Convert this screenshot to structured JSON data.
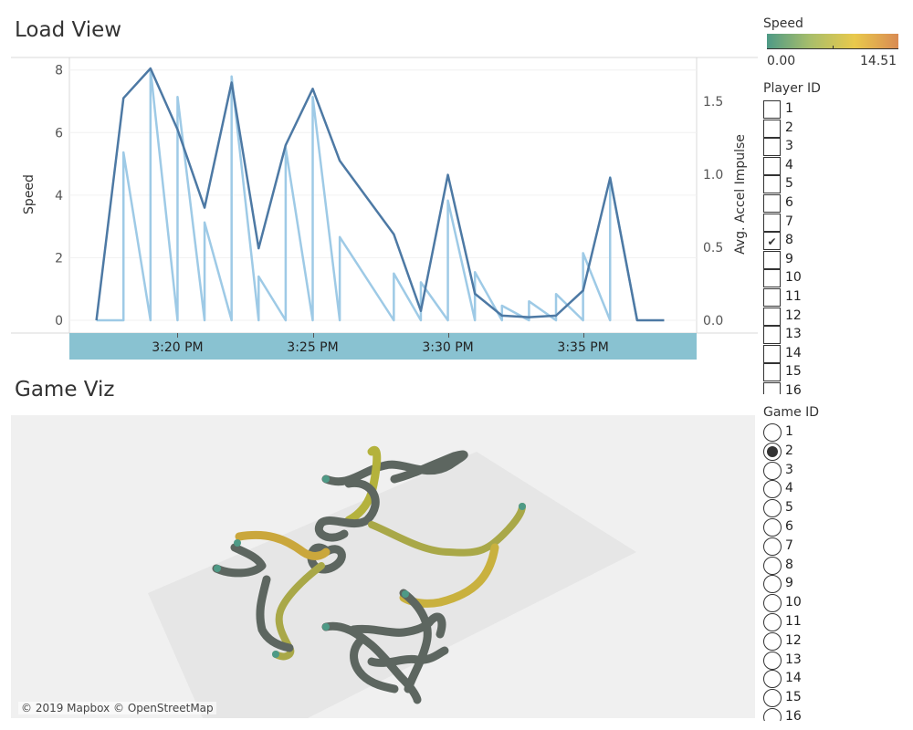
{
  "load_view": {
    "title": "Load View"
  },
  "game_viz": {
    "title": "Game Viz",
    "credit": "© 2019 Mapbox © OpenStreetMap"
  },
  "chart_data": {
    "type": "line",
    "ylabel": "Speed",
    "y2label": "Avg. Accel Impulse",
    "ylim": [
      0,
      8.4
    ],
    "y2lim": [
      0,
      1.8
    ],
    "yticks": [
      0,
      2,
      4,
      6,
      8
    ],
    "y2ticks": [
      "0.0",
      "0.5",
      "1.0",
      "1.5"
    ],
    "xticks": [
      {
        "label": "3:20 PM",
        "minute": 20
      },
      {
        "label": "3:25 PM",
        "minute": 25
      },
      {
        "label": "3:30 PM",
        "minute": 30
      },
      {
        "label": "3:35 PM",
        "minute": 35
      }
    ],
    "series": [
      {
        "name": "Speed",
        "color": "#4d79a4",
        "points": [
          [
            17.0,
            0
          ],
          [
            18.0,
            7.1
          ],
          [
            19.0,
            8.05
          ],
          [
            20.0,
            6.1
          ],
          [
            21.0,
            3.6
          ],
          [
            22.0,
            7.6
          ],
          [
            23.0,
            2.3
          ],
          [
            24.0,
            5.6
          ],
          [
            25.0,
            7.4
          ],
          [
            26.0,
            5.1
          ],
          [
            28.0,
            2.75
          ],
          [
            29.0,
            0.3
          ],
          [
            30.0,
            4.65
          ],
          [
            31.0,
            0.85
          ],
          [
            32.0,
            0.15
          ],
          [
            33.0,
            0.1
          ],
          [
            34.0,
            0.15
          ],
          [
            35.0,
            0.95
          ],
          [
            36.0,
            4.55
          ],
          [
            37.0,
            0
          ],
          [
            38.0,
            0
          ]
        ]
      },
      {
        "name": "Avg. Accel Impulse",
        "color": "#9ecae6",
        "points": [
          [
            17.0,
            0
          ],
          [
            18.0,
            0
          ],
          [
            18.0,
            1.15
          ],
          [
            19.0,
            0
          ],
          [
            19.0,
            1.72
          ],
          [
            20.0,
            0
          ],
          [
            20.0,
            1.53
          ],
          [
            21.0,
            0
          ],
          [
            21.0,
            0.67
          ],
          [
            22.0,
            0
          ],
          [
            22.0,
            1.67
          ],
          [
            23.0,
            0
          ],
          [
            23.0,
            0.3
          ],
          [
            24.0,
            0
          ],
          [
            24.0,
            1.18
          ],
          [
            25.0,
            0
          ],
          [
            25.0,
            1.53
          ],
          [
            26.0,
            0
          ],
          [
            26.0,
            0.57
          ],
          [
            28.0,
            0
          ],
          [
            28.0,
            0.32
          ],
          [
            29.0,
            0
          ],
          [
            29.0,
            0.26
          ],
          [
            30.0,
            0
          ],
          [
            30.0,
            0.82
          ],
          [
            31.0,
            0
          ],
          [
            31.0,
            0.33
          ],
          [
            32.0,
            0
          ],
          [
            32.0,
            0.1
          ],
          [
            33.0,
            0
          ],
          [
            33.0,
            0.13
          ],
          [
            34.0,
            0
          ],
          [
            34.0,
            0.18
          ],
          [
            35.0,
            0
          ],
          [
            35.0,
            0.46
          ],
          [
            36.0,
            0
          ],
          [
            36.0,
            0.98
          ],
          [
            37.0,
            0
          ]
        ]
      }
    ]
  },
  "legend": {
    "speed_title": "Speed",
    "speed_min": "0.00",
    "speed_max": "14.51",
    "colors": [
      "#4e9a86",
      "#a9be6a",
      "#e9c94c",
      "#d98b53"
    ]
  },
  "player_filter": {
    "title": "Player ID",
    "items": [
      {
        "label": "1",
        "checked": false
      },
      {
        "label": "2",
        "checked": false
      },
      {
        "label": "3",
        "checked": false
      },
      {
        "label": "4",
        "checked": false
      },
      {
        "label": "5",
        "checked": false
      },
      {
        "label": "6",
        "checked": false
      },
      {
        "label": "7",
        "checked": false
      },
      {
        "label": "8",
        "checked": true
      },
      {
        "label": "9",
        "checked": false
      },
      {
        "label": "10",
        "checked": false
      },
      {
        "label": "11",
        "checked": false
      },
      {
        "label": "12",
        "checked": false
      },
      {
        "label": "13",
        "checked": false
      },
      {
        "label": "14",
        "checked": false
      },
      {
        "label": "15",
        "checked": false
      },
      {
        "label": "16",
        "checked": false
      }
    ]
  },
  "game_filter": {
    "title": "Game ID",
    "items": [
      {
        "label": "1",
        "selected": false
      },
      {
        "label": "2",
        "selected": true
      },
      {
        "label": "3",
        "selected": false
      },
      {
        "label": "4",
        "selected": false
      },
      {
        "label": "5",
        "selected": false
      },
      {
        "label": "6",
        "selected": false
      },
      {
        "label": "7",
        "selected": false
      },
      {
        "label": "8",
        "selected": false
      },
      {
        "label": "9",
        "selected": false
      },
      {
        "label": "10",
        "selected": false
      },
      {
        "label": "11",
        "selected": false
      },
      {
        "label": "12",
        "selected": false
      },
      {
        "label": "13",
        "selected": false
      },
      {
        "label": "14",
        "selected": false
      },
      {
        "label": "15",
        "selected": false
      },
      {
        "label": "16",
        "selected": false
      }
    ]
  }
}
